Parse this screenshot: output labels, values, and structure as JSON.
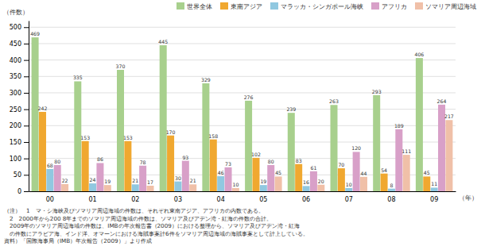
{
  "chart_data": {
    "type": "bar",
    "categories": [
      "00",
      "01",
      "02",
      "03",
      "04",
      "05",
      "06",
      "07",
      "08",
      "09"
    ],
    "series": [
      {
        "name": "世界全体",
        "color": "#a8d08d",
        "values": [
          469,
          335,
          370,
          445,
          329,
          276,
          239,
          263,
          293,
          406
        ]
      },
      {
        "name": "東南アジア",
        "color": "#f0a830",
        "values": [
          242,
          153,
          153,
          170,
          158,
          102,
          83,
          70,
          54,
          45
        ]
      },
      {
        "name": "マラッカ・シンガポール海峡",
        "color": "#90c8e0",
        "values": [
          68,
          24,
          21,
          30,
          46,
          19,
          16,
          10,
          8,
          11
        ]
      },
      {
        "name": "アフリカ",
        "color": "#d8a0c8",
        "values": [
          80,
          86,
          78,
          93,
          73,
          80,
          61,
          120,
          189,
          264
        ]
      },
      {
        "name": "ソマリア周辺海域",
        "color": "#f0c0a8",
        "values": [
          22,
          19,
          17,
          21,
          10,
          45,
          20,
          44,
          111,
          217
        ]
      }
    ],
    "xlabel": "（年）",
    "ylabel": "（件数）",
    "ylim": [
      0,
      520
    ],
    "yticks": [
      0,
      50,
      100,
      150,
      200,
      250,
      300,
      350,
      400,
      450,
      500
    ],
    "grid": true,
    "legend": "upper right",
    "data_labels": true,
    "annotations": [
      "（注）　1　マ・シ海峡及びソマリア周辺海域の件数は、それぞれ東南アジア、アフリカの内数である。",
      "　2　2000年から200 8年までのソマリア周辺海域の件数は、ソマリア及びアデン湾・紅海の件数の合計。",
      "　2009年のソマリア周辺海域の件数は、IMBの年次報告書（2009）における整理から、ソマリア及びアデン湾・紅海",
      "　の件数にアラビア海、インド洋、オマーンにおける海賊事案計6件をソマリア周辺海域の海賊事案として計上している。",
      "資料）「国際海事局（IMB）年次報告（2009）」より作成"
    ]
  }
}
